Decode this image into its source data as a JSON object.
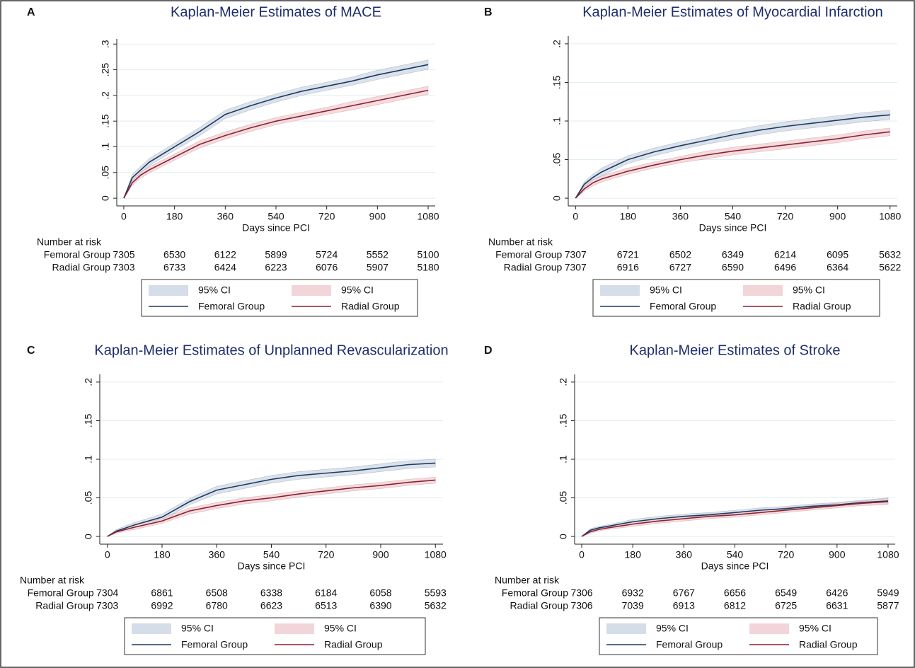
{
  "chart_data": [
    {
      "type": "line",
      "panel": "A",
      "title": "Kaplan-Meier Estimates of MACE",
      "x_label": "Days since PCI",
      "grid": true,
      "xlim": [
        -25,
        1105
      ],
      "xticks": [
        0,
        180,
        360,
        540,
        720,
        900,
        1080
      ],
      "ylim": [
        -0.015,
        0.31
      ],
      "yticks": [
        0,
        {
          "value": 0.05,
          "label": ".05"
        },
        {
          "value": 0.1,
          "label": ".1"
        },
        {
          "value": 0.15,
          "label": ".15"
        },
        {
          "value": 0.2,
          "label": ".2"
        },
        {
          "value": 0.25,
          "label": ".25"
        },
        {
          "value": 0.3,
          "label": ".3"
        }
      ],
      "x": [
        0,
        30,
        60,
        90,
        180,
        270,
        360,
        450,
        540,
        630,
        720,
        810,
        900,
        990,
        1080
      ],
      "series": [
        {
          "name": "Femoral Group",
          "color": "#1f3a5f",
          "ci_name": "95% CI",
          "ci_color": "#d5dde8",
          "values": [
            0,
            0.04,
            0.055,
            0.07,
            0.1,
            0.13,
            0.163,
            0.18,
            0.195,
            0.208,
            0.218,
            0.228,
            0.24,
            0.25,
            0.26
          ],
          "lower": [
            0,
            0.034,
            0.048,
            0.063,
            0.093,
            0.122,
            0.155,
            0.172,
            0.187,
            0.2,
            0.21,
            0.22,
            0.231,
            0.241,
            0.251
          ],
          "upper": [
            0,
            0.046,
            0.062,
            0.077,
            0.107,
            0.138,
            0.171,
            0.188,
            0.203,
            0.216,
            0.226,
            0.236,
            0.249,
            0.259,
            0.269
          ]
        },
        {
          "name": "Radial Group",
          "color": "#8b2232",
          "ci_name": "95% CI",
          "ci_color": "#f2d5d8",
          "values": [
            0,
            0.03,
            0.045,
            0.055,
            0.08,
            0.105,
            0.122,
            0.137,
            0.15,
            0.16,
            0.17,
            0.18,
            0.19,
            0.2,
            0.21
          ],
          "lower": [
            0,
            0.025,
            0.039,
            0.049,
            0.074,
            0.098,
            0.115,
            0.13,
            0.143,
            0.153,
            0.163,
            0.172,
            0.182,
            0.192,
            0.202
          ],
          "upper": [
            0,
            0.035,
            0.051,
            0.061,
            0.086,
            0.112,
            0.129,
            0.144,
            0.157,
            0.167,
            0.177,
            0.188,
            0.198,
            0.208,
            0.218
          ]
        }
      ],
      "risk_title": "Number at risk",
      "risk_table": [
        {
          "name": "Femoral Group",
          "values": [
            7305,
            6530,
            6122,
            5899,
            5724,
            5552,
            5100
          ]
        },
        {
          "name": "Radial Group",
          "values": [
            7303,
            6733,
            6424,
            6223,
            6076,
            5907,
            5180
          ]
        }
      ]
    },
    {
      "type": "line",
      "panel": "B",
      "title": "Kaplan-Meier Estimates of Myocardial Infarction",
      "x_label": "Days since PCI",
      "grid": true,
      "xlim": [
        -25,
        1105
      ],
      "xticks": [
        0,
        180,
        360,
        540,
        720,
        900,
        1080
      ],
      "ylim": [
        -0.01,
        0.21
      ],
      "yticks": [
        0,
        {
          "value": 0.05,
          "label": ".05"
        },
        {
          "value": 0.1,
          "label": ".1"
        },
        {
          "value": 0.15,
          "label": ".15"
        },
        {
          "value": 0.2,
          "label": ".2"
        }
      ],
      "x": [
        0,
        30,
        60,
        90,
        180,
        270,
        360,
        450,
        540,
        630,
        720,
        810,
        900,
        990,
        1080
      ],
      "series": [
        {
          "name": "Femoral Group",
          "color": "#1f3a5f",
          "ci_name": "95% CI",
          "ci_color": "#d5dde8",
          "values": [
            0,
            0.018,
            0.027,
            0.034,
            0.05,
            0.06,
            0.068,
            0.075,
            0.082,
            0.088,
            0.093,
            0.097,
            0.101,
            0.105,
            0.108
          ],
          "lower": [
            0,
            0.015,
            0.023,
            0.029,
            0.045,
            0.055,
            0.063,
            0.07,
            0.076,
            0.082,
            0.087,
            0.091,
            0.095,
            0.099,
            0.102
          ],
          "upper": [
            0,
            0.021,
            0.031,
            0.039,
            0.055,
            0.065,
            0.073,
            0.08,
            0.088,
            0.094,
            0.099,
            0.103,
            0.107,
            0.111,
            0.114
          ]
        },
        {
          "name": "Radial Group",
          "color": "#8b2232",
          "ci_name": "95% CI",
          "ci_color": "#f2d5d8",
          "values": [
            0,
            0.012,
            0.02,
            0.025,
            0.035,
            0.043,
            0.05,
            0.056,
            0.061,
            0.065,
            0.069,
            0.073,
            0.077,
            0.082,
            0.086
          ],
          "lower": [
            0,
            0.009,
            0.016,
            0.021,
            0.031,
            0.039,
            0.046,
            0.051,
            0.056,
            0.06,
            0.064,
            0.068,
            0.072,
            0.077,
            0.081
          ],
          "upper": [
            0,
            0.015,
            0.024,
            0.029,
            0.039,
            0.047,
            0.054,
            0.061,
            0.066,
            0.07,
            0.074,
            0.078,
            0.082,
            0.087,
            0.091
          ]
        }
      ],
      "risk_title": "Number at risk",
      "risk_table": [
        {
          "name": "Femoral Group",
          "values": [
            7307,
            6721,
            6502,
            6349,
            6214,
            6095,
            5632
          ]
        },
        {
          "name": "Radial Group",
          "values": [
            7307,
            6916,
            6727,
            6590,
            6496,
            6364,
            5622
          ]
        }
      ]
    },
    {
      "type": "line",
      "panel": "C",
      "title": "Kaplan-Meier Estimates of Unplanned Revascularization",
      "x_label": "Days since PCI",
      "grid": true,
      "xlim": [
        -25,
        1105
      ],
      "xticks": [
        0,
        180,
        360,
        540,
        720,
        900,
        1080
      ],
      "ylim": [
        -0.01,
        0.21
      ],
      "yticks": [
        0,
        {
          "value": 0.05,
          "label": ".05"
        },
        {
          "value": 0.1,
          "label": ".1"
        },
        {
          "value": 0.15,
          "label": ".15"
        },
        {
          "value": 0.2,
          "label": ".2"
        }
      ],
      "x": [
        0,
        30,
        60,
        90,
        180,
        270,
        360,
        450,
        540,
        630,
        720,
        810,
        900,
        990,
        1080
      ],
      "series": [
        {
          "name": "Femoral Group",
          "color": "#1f3a5f",
          "ci_name": "95% CI",
          "ci_color": "#d5dde8",
          "values": [
            0,
            0.007,
            0.011,
            0.015,
            0.025,
            0.045,
            0.06,
            0.067,
            0.074,
            0.079,
            0.082,
            0.085,
            0.089,
            0.093,
            0.095
          ],
          "lower": [
            0,
            0.005,
            0.008,
            0.012,
            0.021,
            0.041,
            0.055,
            0.062,
            0.069,
            0.074,
            0.077,
            0.08,
            0.084,
            0.088,
            0.09
          ],
          "upper": [
            0,
            0.009,
            0.014,
            0.018,
            0.029,
            0.049,
            0.065,
            0.072,
            0.079,
            0.084,
            0.087,
            0.09,
            0.094,
            0.098,
            0.1
          ]
        },
        {
          "name": "Radial Group",
          "color": "#8b2232",
          "ci_name": "95% CI",
          "ci_color": "#f2d5d8",
          "values": [
            0,
            0.006,
            0.009,
            0.012,
            0.02,
            0.033,
            0.04,
            0.046,
            0.05,
            0.055,
            0.059,
            0.063,
            0.066,
            0.07,
            0.073
          ],
          "lower": [
            0,
            0.004,
            0.007,
            0.009,
            0.017,
            0.029,
            0.036,
            0.042,
            0.046,
            0.051,
            0.055,
            0.059,
            0.062,
            0.066,
            0.069
          ],
          "upper": [
            0,
            0.008,
            0.011,
            0.015,
            0.023,
            0.037,
            0.044,
            0.05,
            0.054,
            0.059,
            0.063,
            0.067,
            0.07,
            0.074,
            0.077
          ]
        }
      ],
      "risk_title": "Number at risk",
      "risk_table": [
        {
          "name": "Femoral Group",
          "values": [
            7304,
            6861,
            6508,
            6338,
            6184,
            6058,
            5593
          ]
        },
        {
          "name": "Radial Group",
          "values": [
            7303,
            6992,
            6780,
            6623,
            6513,
            6390,
            5632
          ]
        }
      ]
    },
    {
      "type": "line",
      "panel": "D",
      "title": "Kaplan-Meier Estimates of Stroke",
      "x_label": "Days since PCI",
      "grid": true,
      "xlim": [
        -25,
        1105
      ],
      "xticks": [
        0,
        180,
        360,
        540,
        720,
        900,
        1080
      ],
      "ylim": [
        -0.01,
        0.21
      ],
      "yticks": [
        0,
        {
          "value": 0.05,
          "label": ".05"
        },
        {
          "value": 0.1,
          "label": ".1"
        },
        {
          "value": 0.15,
          "label": ".15"
        },
        {
          "value": 0.2,
          "label": ".2"
        }
      ],
      "x": [
        0,
        30,
        60,
        90,
        180,
        270,
        360,
        450,
        540,
        630,
        720,
        810,
        900,
        990,
        1080
      ],
      "series": [
        {
          "name": "Femoral Group",
          "color": "#1f3a5f",
          "ci_name": "95% CI",
          "ci_color": "#d5dde8",
          "values": [
            0,
            0.008,
            0.011,
            0.013,
            0.019,
            0.023,
            0.026,
            0.028,
            0.031,
            0.034,
            0.036,
            0.039,
            0.041,
            0.044,
            0.046
          ],
          "lower": [
            0,
            0.006,
            0.009,
            0.011,
            0.016,
            0.02,
            0.023,
            0.025,
            0.028,
            0.031,
            0.033,
            0.036,
            0.038,
            0.041,
            0.042
          ],
          "upper": [
            0,
            0.01,
            0.013,
            0.015,
            0.022,
            0.026,
            0.029,
            0.031,
            0.034,
            0.037,
            0.039,
            0.042,
            0.044,
            0.047,
            0.05
          ]
        },
        {
          "name": "Radial Group",
          "color": "#8b2232",
          "ci_name": "95% CI",
          "ci_color": "#f2d5d8",
          "values": [
            0,
            0.006,
            0.009,
            0.011,
            0.016,
            0.02,
            0.023,
            0.026,
            0.028,
            0.031,
            0.034,
            0.037,
            0.04,
            0.043,
            0.045
          ],
          "lower": [
            0,
            0.004,
            0.007,
            0.009,
            0.013,
            0.017,
            0.02,
            0.023,
            0.025,
            0.028,
            0.031,
            0.034,
            0.037,
            0.04,
            0.041
          ],
          "upper": [
            0,
            0.008,
            0.011,
            0.013,
            0.019,
            0.023,
            0.026,
            0.029,
            0.031,
            0.034,
            0.037,
            0.04,
            0.043,
            0.046,
            0.049
          ]
        }
      ],
      "risk_title": "Number at risk",
      "risk_table": [
        {
          "name": "Femoral Group",
          "values": [
            7306,
            6932,
            6767,
            6656,
            6549,
            6426,
            5949
          ]
        },
        {
          "name": "Radial Group",
          "values": [
            7306,
            7039,
            6913,
            6812,
            6725,
            6631,
            5877
          ]
        }
      ]
    }
  ]
}
